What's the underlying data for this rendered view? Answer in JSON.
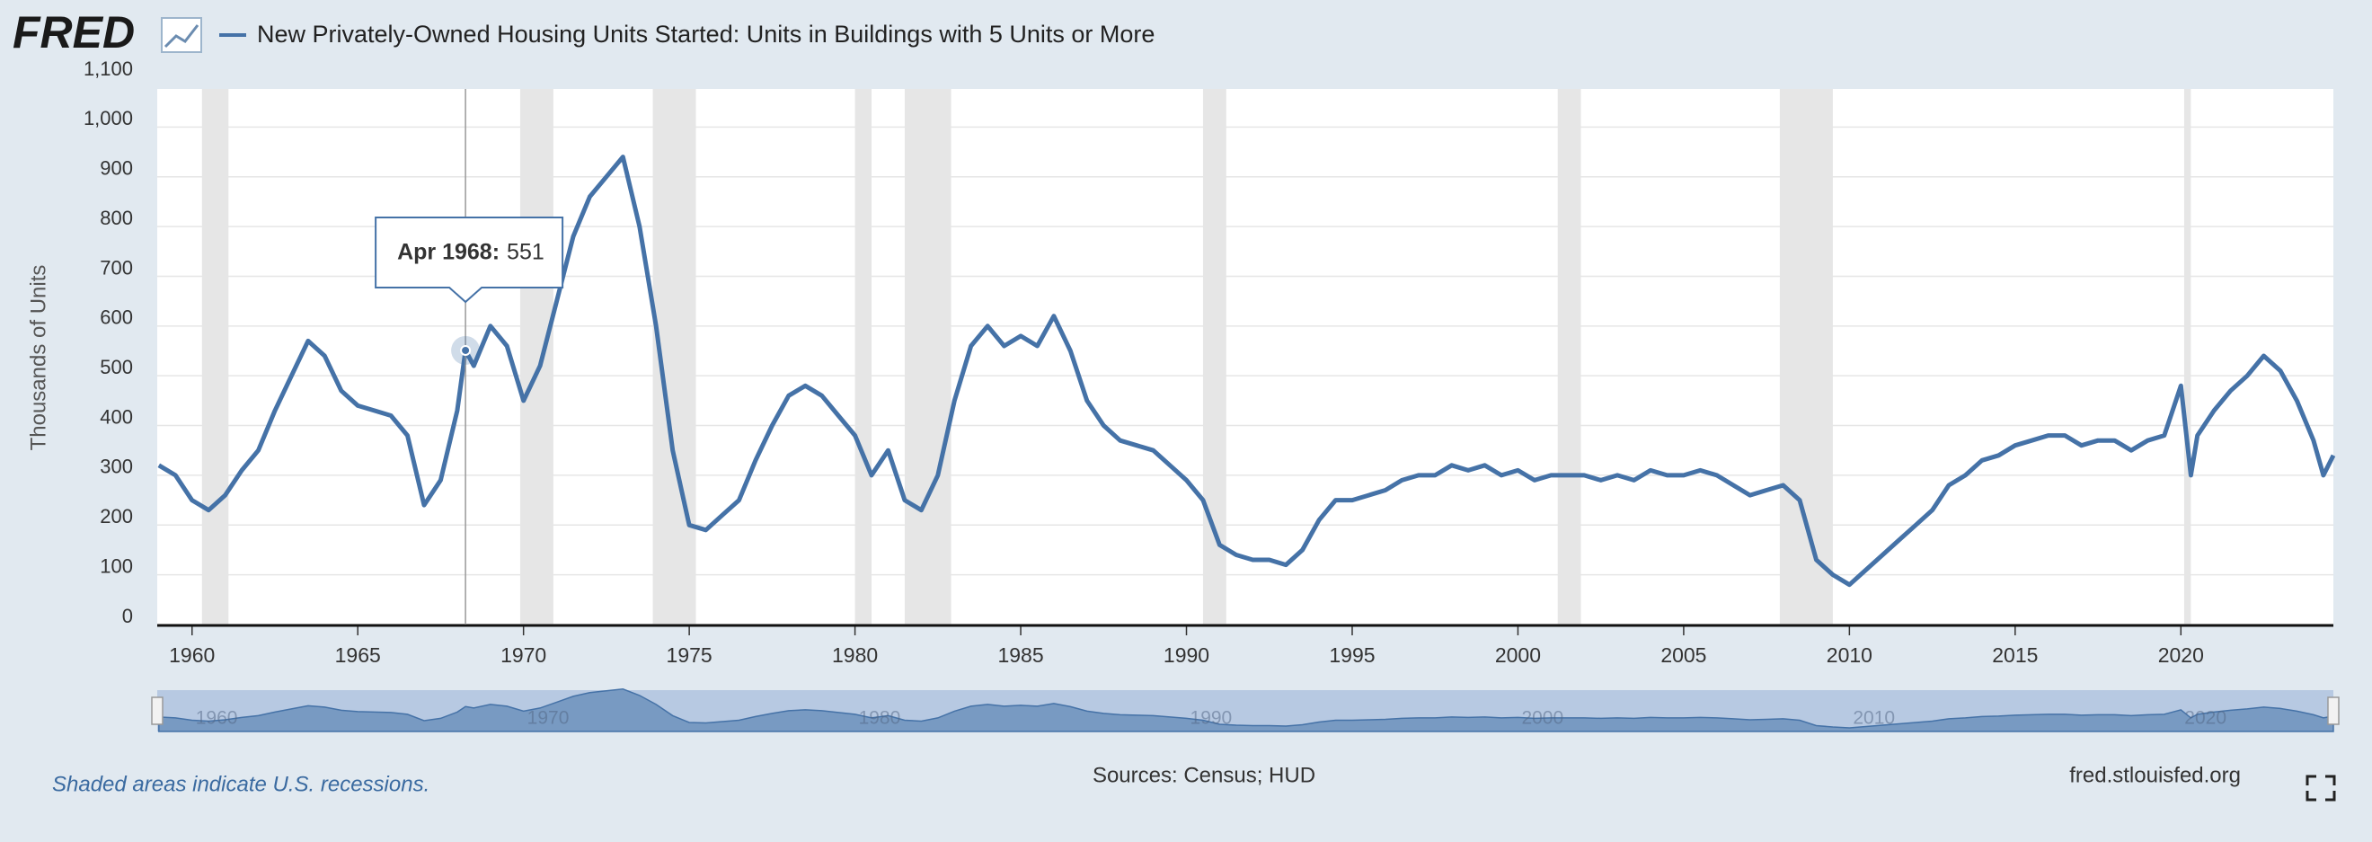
{
  "logo": "FRED",
  "chart_data": {
    "type": "line",
    "y_label": "Thousands of Units",
    "series": [
      {
        "name": "New Privately-Owned Housing Units Started: Units in Buildings with 5 Units or More",
        "color": "#4572a7",
        "x": [
          1959.0,
          1959.5,
          1960.0,
          1960.5,
          1961.0,
          1961.5,
          1962.0,
          1962.5,
          1963.0,
          1963.5,
          1964.0,
          1964.5,
          1965.0,
          1965.5,
          1966.0,
          1966.5,
          1967.0,
          1967.5,
          1968.0,
          1968.25,
          1968.5,
          1969.0,
          1969.5,
          1970.0,
          1970.5,
          1971.0,
          1971.5,
          1972.0,
          1972.5,
          1973.0,
          1973.5,
          1974.0,
          1974.5,
          1975.0,
          1975.5,
          1976.0,
          1976.5,
          1977.0,
          1977.5,
          1978.0,
          1978.5,
          1979.0,
          1979.5,
          1980.0,
          1980.5,
          1981.0,
          1981.5,
          1982.0,
          1982.5,
          1983.0,
          1983.5,
          1984.0,
          1984.5,
          1985.0,
          1985.5,
          1986.0,
          1986.5,
          1987.0,
          1987.5,
          1988.0,
          1988.5,
          1989.0,
          1989.5,
          1990.0,
          1990.5,
          1991.0,
          1991.5,
          1992.0,
          1992.5,
          1993.0,
          1993.5,
          1994.0,
          1994.5,
          1995.0,
          1995.5,
          1996.0,
          1996.5,
          1997.0,
          1997.5,
          1998.0,
          1998.5,
          1999.0,
          1999.5,
          2000.0,
          2000.5,
          2001.0,
          2001.5,
          2002.0,
          2002.5,
          2003.0,
          2003.5,
          2004.0,
          2004.5,
          2005.0,
          2005.5,
          2006.0,
          2006.5,
          2007.0,
          2007.5,
          2008.0,
          2008.5,
          2009.0,
          2009.5,
          2010.0,
          2010.5,
          2011.0,
          2011.5,
          2012.0,
          2012.5,
          2013.0,
          2013.5,
          2014.0,
          2014.5,
          2015.0,
          2015.5,
          2016.0,
          2016.5,
          2017.0,
          2017.5,
          2018.0,
          2018.5,
          2019.0,
          2019.5,
          2020.0,
          2020.3,
          2020.5,
          2021.0,
          2021.5,
          2022.0,
          2022.5,
          2023.0,
          2023.5,
          2024.0,
          2024.3,
          2024.6
        ],
        "values": [
          320,
          300,
          250,
          230,
          260,
          310,
          350,
          430,
          500,
          570,
          540,
          470,
          440,
          430,
          420,
          380,
          240,
          290,
          430,
          551,
          520,
          600,
          560,
          450,
          520,
          650,
          780,
          860,
          900,
          940,
          800,
          600,
          350,
          200,
          190,
          220,
          250,
          330,
          400,
          460,
          480,
          460,
          420,
          380,
          300,
          350,
          250,
          230,
          300,
          450,
          560,
          600,
          560,
          580,
          560,
          620,
          550,
          450,
          400,
          370,
          360,
          350,
          320,
          290,
          250,
          160,
          140,
          130,
          130,
          120,
          150,
          210,
          250,
          250,
          260,
          270,
          290,
          300,
          300,
          320,
          310,
          320,
          300,
          310,
          290,
          300,
          300,
          300,
          290,
          300,
          290,
          310,
          300,
          300,
          310,
          300,
          280,
          260,
          270,
          280,
          250,
          130,
          100,
          80,
          110,
          140,
          170,
          200,
          230,
          280,
          300,
          330,
          340,
          360,
          370,
          380,
          380,
          360,
          370,
          370,
          350,
          370,
          380,
          480,
          300,
          380,
          430,
          470,
          500,
          540,
          510,
          450,
          370,
          300,
          340
        ]
      }
    ],
    "xlim": [
      1958.95,
      2024.6
    ],
    "xticks": [
      1960,
      1965,
      1970,
      1975,
      1980,
      1985,
      1990,
      1995,
      2000,
      2005,
      2010,
      2015,
      2020
    ],
    "ylim": [
      0,
      1100
    ],
    "yticks": [
      0,
      100,
      200,
      300,
      400,
      500,
      600,
      700,
      800,
      900,
      {
        "value": 1000,
        "label": "1,000"
      },
      {
        "value": 1100,
        "label": "1,100"
      }
    ],
    "grid": true,
    "recessions": [
      [
        1960.3,
        1961.1
      ],
      [
        1969.9,
        1970.9
      ],
      [
        1973.9,
        1975.2
      ],
      [
        1980.0,
        1980.5
      ],
      [
        1981.5,
        1982.9
      ],
      [
        1990.5,
        1991.2
      ],
      [
        2001.2,
        2001.9
      ],
      [
        2007.9,
        2009.5
      ],
      [
        2020.1,
        2020.3
      ]
    ],
    "tooltip": {
      "label": "Apr 1968:",
      "x": 1968.25,
      "value": 551
    },
    "navigator_ticks": [
      1960,
      1970,
      1980,
      1990,
      2000,
      2010,
      2020
    ]
  },
  "footer": {
    "note": "Shaded areas indicate U.S. recessions.",
    "sources": "Sources: Census; HUD",
    "site": "fred.stlouisfed.org"
  }
}
